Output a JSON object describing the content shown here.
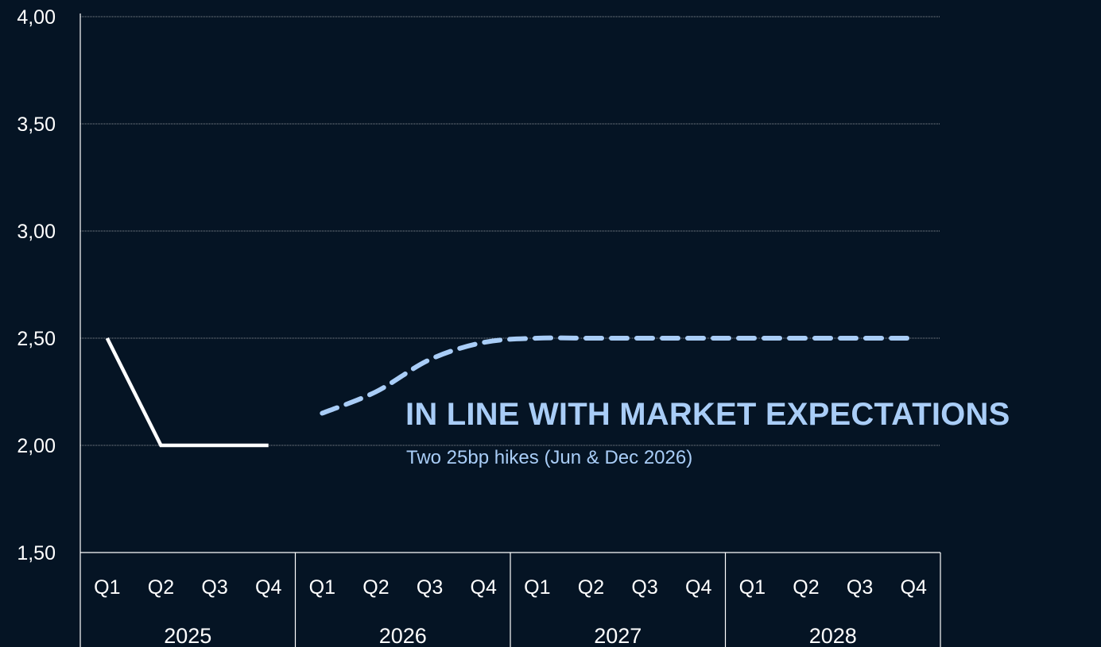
{
  "chart_data": {
    "type": "line",
    "ylim": [
      1.5,
      4.0
    ],
    "yticks": [
      "4,00",
      "3,50",
      "3,00",
      "2,50",
      "2,00",
      "1,50"
    ],
    "ytick_values": [
      4.0,
      3.5,
      3.0,
      2.5,
      2.0,
      1.5
    ],
    "grid": true,
    "x_quarters": [
      "Q1",
      "Q2",
      "Q3",
      "Q4",
      "Q1",
      "Q2",
      "Q3",
      "Q4",
      "Q1",
      "Q2",
      "Q3",
      "Q4",
      "Q1",
      "Q2",
      "Q3",
      "Q4"
    ],
    "x_years": [
      "2025",
      "2026",
      "2027",
      "2028"
    ],
    "series": [
      {
        "style": "solid",
        "color": "#ffffff",
        "points": [
          {
            "x": 0,
            "y": 2.5
          },
          {
            "x": 1,
            "y": 2.0
          },
          {
            "x": 2,
            "y": 2.0
          },
          {
            "x": 3,
            "y": 2.0
          }
        ]
      },
      {
        "style": "dashed",
        "color": "#a9cdf7",
        "points": [
          {
            "x": 4,
            "y": 2.15
          },
          {
            "x": 5,
            "y": 2.25
          },
          {
            "x": 6,
            "y": 2.4
          },
          {
            "x": 7,
            "y": 2.48
          },
          {
            "x": 8,
            "y": 2.5
          },
          {
            "x": 9,
            "y": 2.5
          },
          {
            "x": 10,
            "y": 2.5
          },
          {
            "x": 11,
            "y": 2.5
          },
          {
            "x": 12,
            "y": 2.5
          },
          {
            "x": 13,
            "y": 2.5
          },
          {
            "x": 14,
            "y": 2.5
          },
          {
            "x": 15,
            "y": 2.5
          }
        ]
      }
    ],
    "annotation": {
      "title": "IN LINE WITH  MARKET EXPECTATIONS",
      "subtitle": "Two 25bp hikes (Jun & Dec 2026)"
    }
  },
  "colors": {
    "background": "#051424",
    "axis": "#ffffff",
    "grid": "#8a8f96",
    "actual_line": "#ffffff",
    "forecast_line": "#a9cdf7",
    "annotation": "#a9cdf7"
  }
}
